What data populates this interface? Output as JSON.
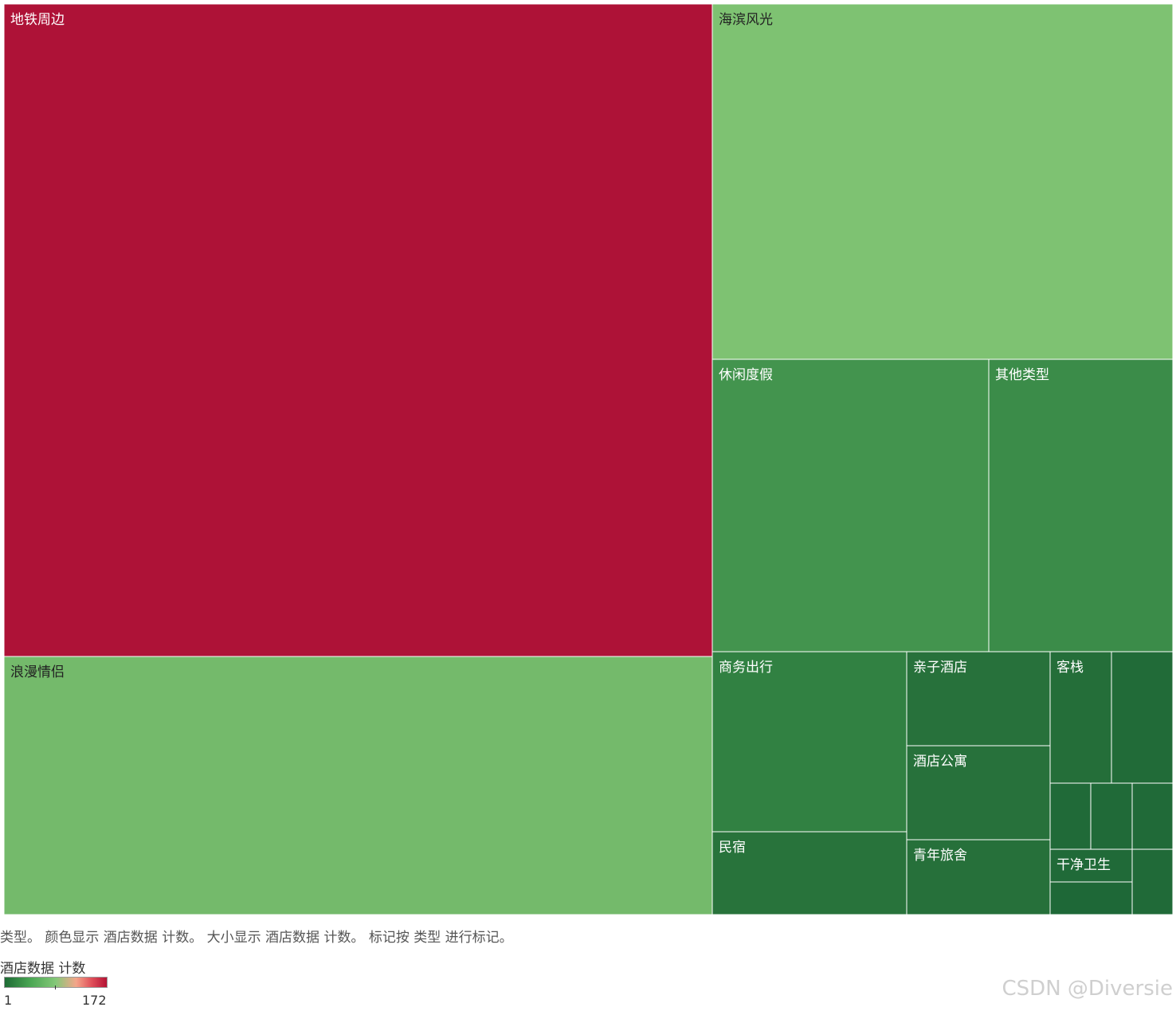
{
  "chart_data": {
    "type": "treemap",
    "categories": [
      "地铁周边",
      "浪漫情侣",
      "海滨风光",
      "休闲度假",
      "其他类型",
      "商务出行",
      "民宿",
      "亲子酒店",
      "酒店公寓",
      "青年旅舍",
      "客栈",
      "干净卫生",
      "",
      "",
      "",
      "",
      "",
      ""
    ],
    "values": [
      172,
      59,
      64,
      36,
      28,
      18,
      8,
      7,
      7,
      6,
      5,
      2,
      3,
      2,
      2,
      2,
      2,
      1
    ],
    "color_values": [
      172,
      59,
      64,
      36,
      28,
      18,
      8,
      7,
      7,
      6,
      5,
      2,
      3,
      2,
      2,
      2,
      2,
      1
    ],
    "color_range": [
      1,
      172
    ]
  },
  "caption": "类型。 颜色显示 酒店数据 计数。 大小显示 酒店数据 计数。 标记按 类型 进行标记。",
  "legend": {
    "title": "酒店数据 计数",
    "min": "1",
    "max": "172"
  },
  "watermark": "CSDN @Diversie",
  "colors": {
    "max_red": "#ae1237",
    "light_green": "#84c878",
    "mid_green": "#46954f",
    "dark_green": "#23683a"
  }
}
